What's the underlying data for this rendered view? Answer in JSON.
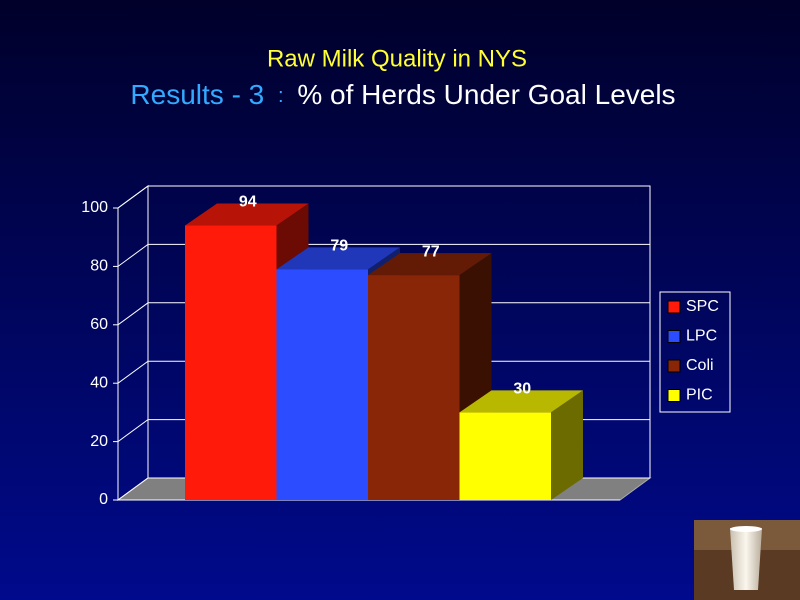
{
  "chart_data": {
    "type": "bar3d",
    "title": "Raw Milk Quality in NYS",
    "subtitle": [
      "Results - 3",
      ":",
      "% of Herds Under Goal Levels"
    ],
    "categories": [
      null
    ],
    "series": [
      {
        "name": "SPC",
        "color": "#ff1a0a",
        "values": [
          94
        ]
      },
      {
        "name": "LPC",
        "color": "#2b4cff",
        "values": [
          79
        ]
      },
      {
        "name": "Coli",
        "color": "#8a2608",
        "values": [
          77
        ]
      },
      {
        "name": "PIC",
        "color": "#ffff00",
        "values": [
          30
        ]
      }
    ],
    "ylim": [
      0,
      100
    ],
    "yticks": [
      0,
      20,
      40,
      60,
      80,
      100
    ],
    "grid": true,
    "legend": "right"
  }
}
